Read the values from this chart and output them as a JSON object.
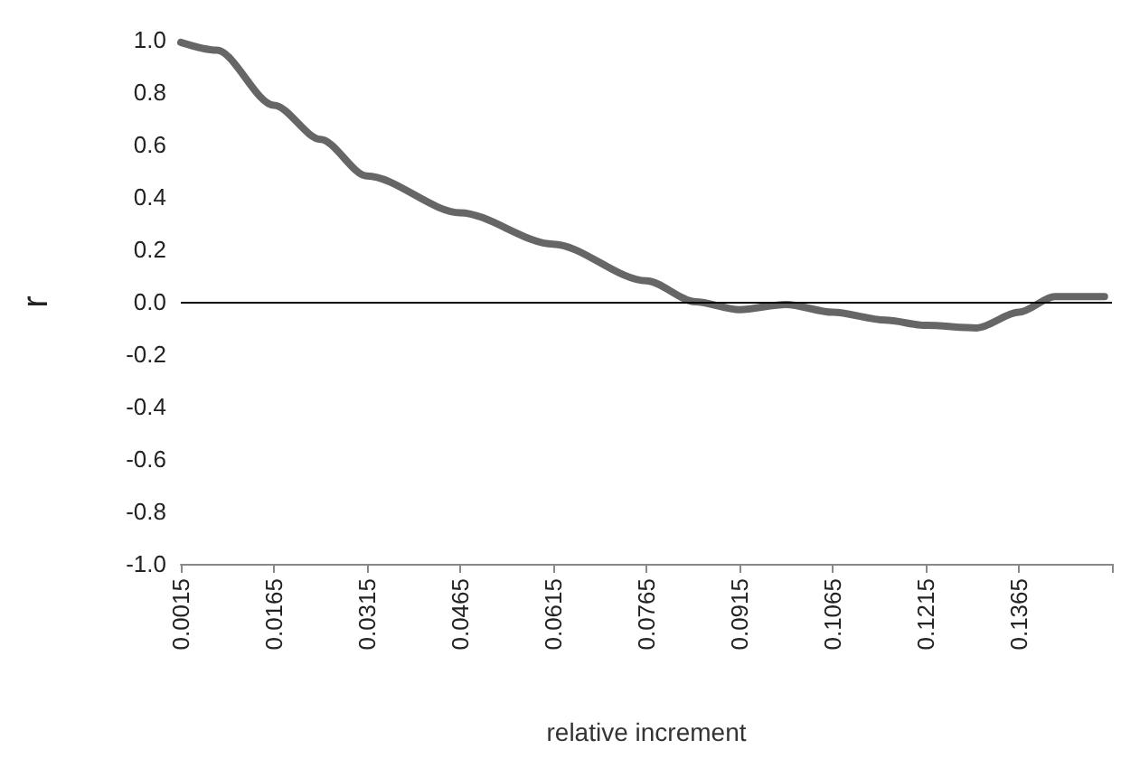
{
  "chart_data": {
    "type": "line",
    "xlabel": "relative increment",
    "ylabel": "r",
    "x": [
      0.0015,
      0.0073,
      0.0165,
      0.024,
      0.0315,
      0.0465,
      0.0615,
      0.0765,
      0.0844,
      0.0915,
      0.099,
      0.1065,
      0.115,
      0.1215,
      0.1297,
      0.1365,
      0.1423,
      0.1503
    ],
    "series": [
      {
        "color": "#666666",
        "values": [
          0.99,
          0.96,
          0.75,
          0.62,
          0.48,
          0.34,
          0.22,
          0.08,
          0.0,
          -0.03,
          -0.01,
          -0.04,
          -0.07,
          -0.09,
          -0.1,
          -0.04,
          0.02,
          0.02
        ]
      }
    ],
    "xlim": [
      0.0015,
      0.1515
    ],
    "xticks": [
      {
        "value": 0.0015,
        "label": "0.0015"
      },
      {
        "value": 0.0165,
        "label": "0.0165"
      },
      {
        "value": 0.0315,
        "label": "0.0315"
      },
      {
        "value": 0.0465,
        "label": "0.0465"
      },
      {
        "value": 0.0615,
        "label": "0.0615"
      },
      {
        "value": 0.0765,
        "label": "0.0765"
      },
      {
        "value": 0.0915,
        "label": "0.0915"
      },
      {
        "value": 0.1065,
        "label": "0.1065"
      },
      {
        "value": 0.1215,
        "label": "0.1215"
      },
      {
        "value": 0.1365,
        "label": "0.1365"
      },
      {
        "value": 0.1515,
        "label": null
      }
    ],
    "ylim": [
      -1.0,
      1.0
    ],
    "yticks": [
      {
        "value": -1,
        "label": "-1.0"
      },
      {
        "value": -0.8,
        "label": "-0.8"
      },
      {
        "value": -0.6,
        "label": "-0.6"
      },
      {
        "value": -0.4,
        "label": "-0.4"
      },
      {
        "value": -0.2,
        "label": "-0.2"
      },
      {
        "value": 0,
        "label": "0.0"
      },
      {
        "value": 0.2,
        "label": "0.2"
      },
      {
        "value": 0.4,
        "label": "0.4"
      },
      {
        "value": 0.6,
        "label": "0.6"
      },
      {
        "value": 0.8,
        "label": "0.8"
      },
      {
        "value": 1,
        "label": "1.0"
      }
    ],
    "ref_lines": [
      {
        "axis": "y",
        "value": 0,
        "color": "#000000"
      }
    ],
    "grid": false,
    "marker": "none",
    "line_style": "solid"
  }
}
